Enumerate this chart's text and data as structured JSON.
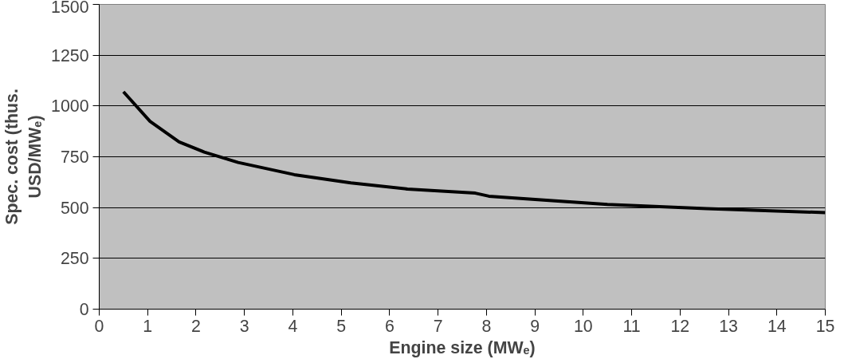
{
  "chart_data": {
    "type": "line",
    "xlabel": "Engine size (MWₑ)",
    "ylabel": "Spec. cost (thus.\nUSD/MWₑ)",
    "series": [
      {
        "color": "#000000",
        "x": [
          0.5,
          1.05,
          1.65,
          2.17,
          2.87,
          4.03,
          5.2,
          6.37,
          7.77,
          8.05,
          10.5,
          12.55,
          15
        ],
        "values": [
          1070,
          924,
          823,
          773,
          722,
          662,
          621,
          591,
          571,
          556,
          515,
          495,
          475
        ]
      }
    ],
    "xlim": [
      0,
      15
    ],
    "xticks": [
      0,
      1,
      2,
      3,
      4,
      5,
      6,
      7,
      8,
      9,
      10,
      11,
      12,
      13,
      14,
      15
    ],
    "ylim": [
      0,
      1500
    ],
    "yticks": [
      0,
      250,
      500,
      750,
      1000,
      1250,
      1500
    ],
    "grid": "y",
    "marker": "none",
    "line_style": "solid"
  }
}
